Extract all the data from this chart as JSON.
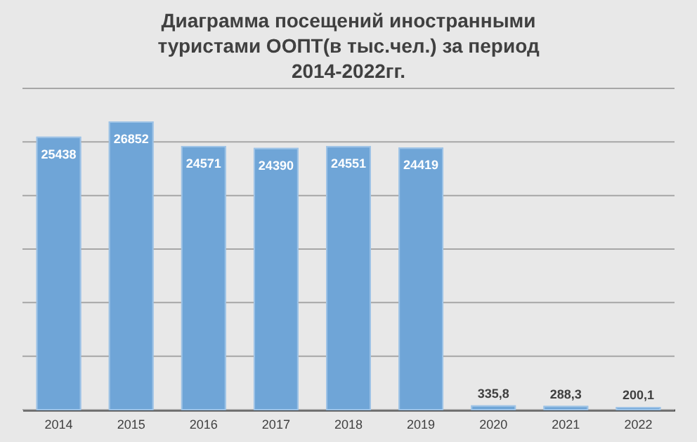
{
  "chart_data": {
    "type": "bar",
    "title": "Диаграмма посещений иностранными туристами ООПТ(в тыс.чел.) за период 2014-2022гг.",
    "categories": [
      "2014",
      "2015",
      "2016",
      "2017",
      "2018",
      "2019",
      "2020",
      "2021",
      "2022"
    ],
    "values": [
      25438,
      26852,
      24571,
      24390,
      24551,
      24419,
      335.8,
      288.3,
      200.1
    ],
    "value_labels": [
      "25438",
      "26852",
      "24571",
      "24390",
      "24551",
      "24419",
      "335,8",
      "288,3",
      "200,1"
    ],
    "color": "#6fa5d7",
    "ylim": [
      0,
      30000
    ],
    "yticks": [
      {
        "value": 0,
        "label": null
      },
      {
        "value": 5000,
        "label": null
      },
      {
        "value": 10000,
        "label": null
      },
      {
        "value": 15000,
        "label": null
      },
      {
        "value": 20000,
        "label": null
      },
      {
        "value": 25000,
        "label": null
      },
      {
        "value": 30000,
        "label": null
      }
    ],
    "tick_labels": "x",
    "grid": "y"
  }
}
